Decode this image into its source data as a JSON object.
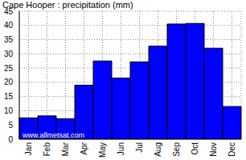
{
  "chart_data": {
    "type": "bar",
    "title": "Cape Hooper : precipitation (mm)",
    "annotations": [
      "www.allmetsat.com"
    ],
    "categories": [
      "Jan",
      "Feb",
      "Mar",
      "Apr",
      "May",
      "Jun",
      "Jul",
      "Aug",
      "Sep",
      "Oct",
      "Nov",
      "Dec"
    ],
    "values": [
      7.5,
      8.2,
      7.2,
      19,
      27.5,
      21.5,
      27.2,
      32.7,
      40.5,
      40.7,
      32,
      11.5
    ],
    "color": "#0000ff",
    "ylim": [
      0,
      45
    ],
    "yticks": [
      0,
      5,
      10,
      15,
      20,
      25,
      30,
      35,
      40,
      45
    ],
    "grid": true
  }
}
